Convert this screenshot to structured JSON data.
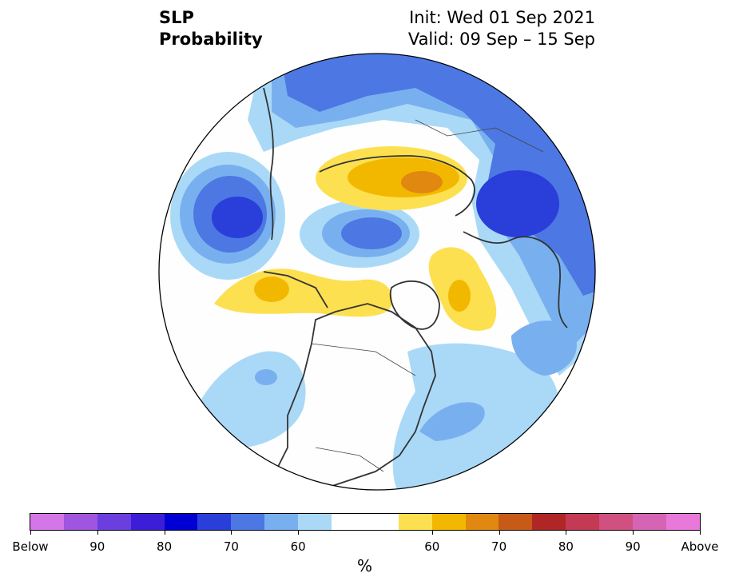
{
  "header": {
    "left_line1": "SLP",
    "left_line2": "Probability",
    "right_line1": "Init: Wed 01 Sep 2021",
    "right_line2": "Valid: 09 Sep – 15 Sep"
  },
  "colorbar": {
    "colors": [
      "#d576e8",
      "#9f55e0",
      "#6b3ee0",
      "#3d1ed8",
      "#0000d4",
      "#2a3ed9",
      "#4d77e3",
      "#78b0ef",
      "#aad9f7",
      "#ffffff",
      "#ffffff",
      "#fde050",
      "#f2b800",
      "#e08810",
      "#c85a17",
      "#b02525",
      "#c43a55",
      "#d0507f",
      "#d664b4",
      "#e878da"
    ],
    "labels": [
      {
        "text": "Below",
        "index": 0
      },
      {
        "text": "90",
        "index": 2
      },
      {
        "text": "80",
        "index": 4
      },
      {
        "text": "70",
        "index": 6
      },
      {
        "text": "60",
        "index": 8
      },
      {
        "text": "60",
        "index": 12
      },
      {
        "text": "70",
        "index": 14
      },
      {
        "text": "80",
        "index": 16
      },
      {
        "text": "90",
        "index": 18
      },
      {
        "text": "Above",
        "index": 20
      }
    ],
    "unit": "%"
  },
  "map_colors": {
    "blue_light": "#aad9f7",
    "blue_mid": "#78b0ef",
    "blue_dark": "#4d77e3",
    "blue_deep": "#2a3ed9",
    "yellow": "#fde050",
    "gold": "#f2b800",
    "orange": "#e08810",
    "land_line": "#333333"
  }
}
